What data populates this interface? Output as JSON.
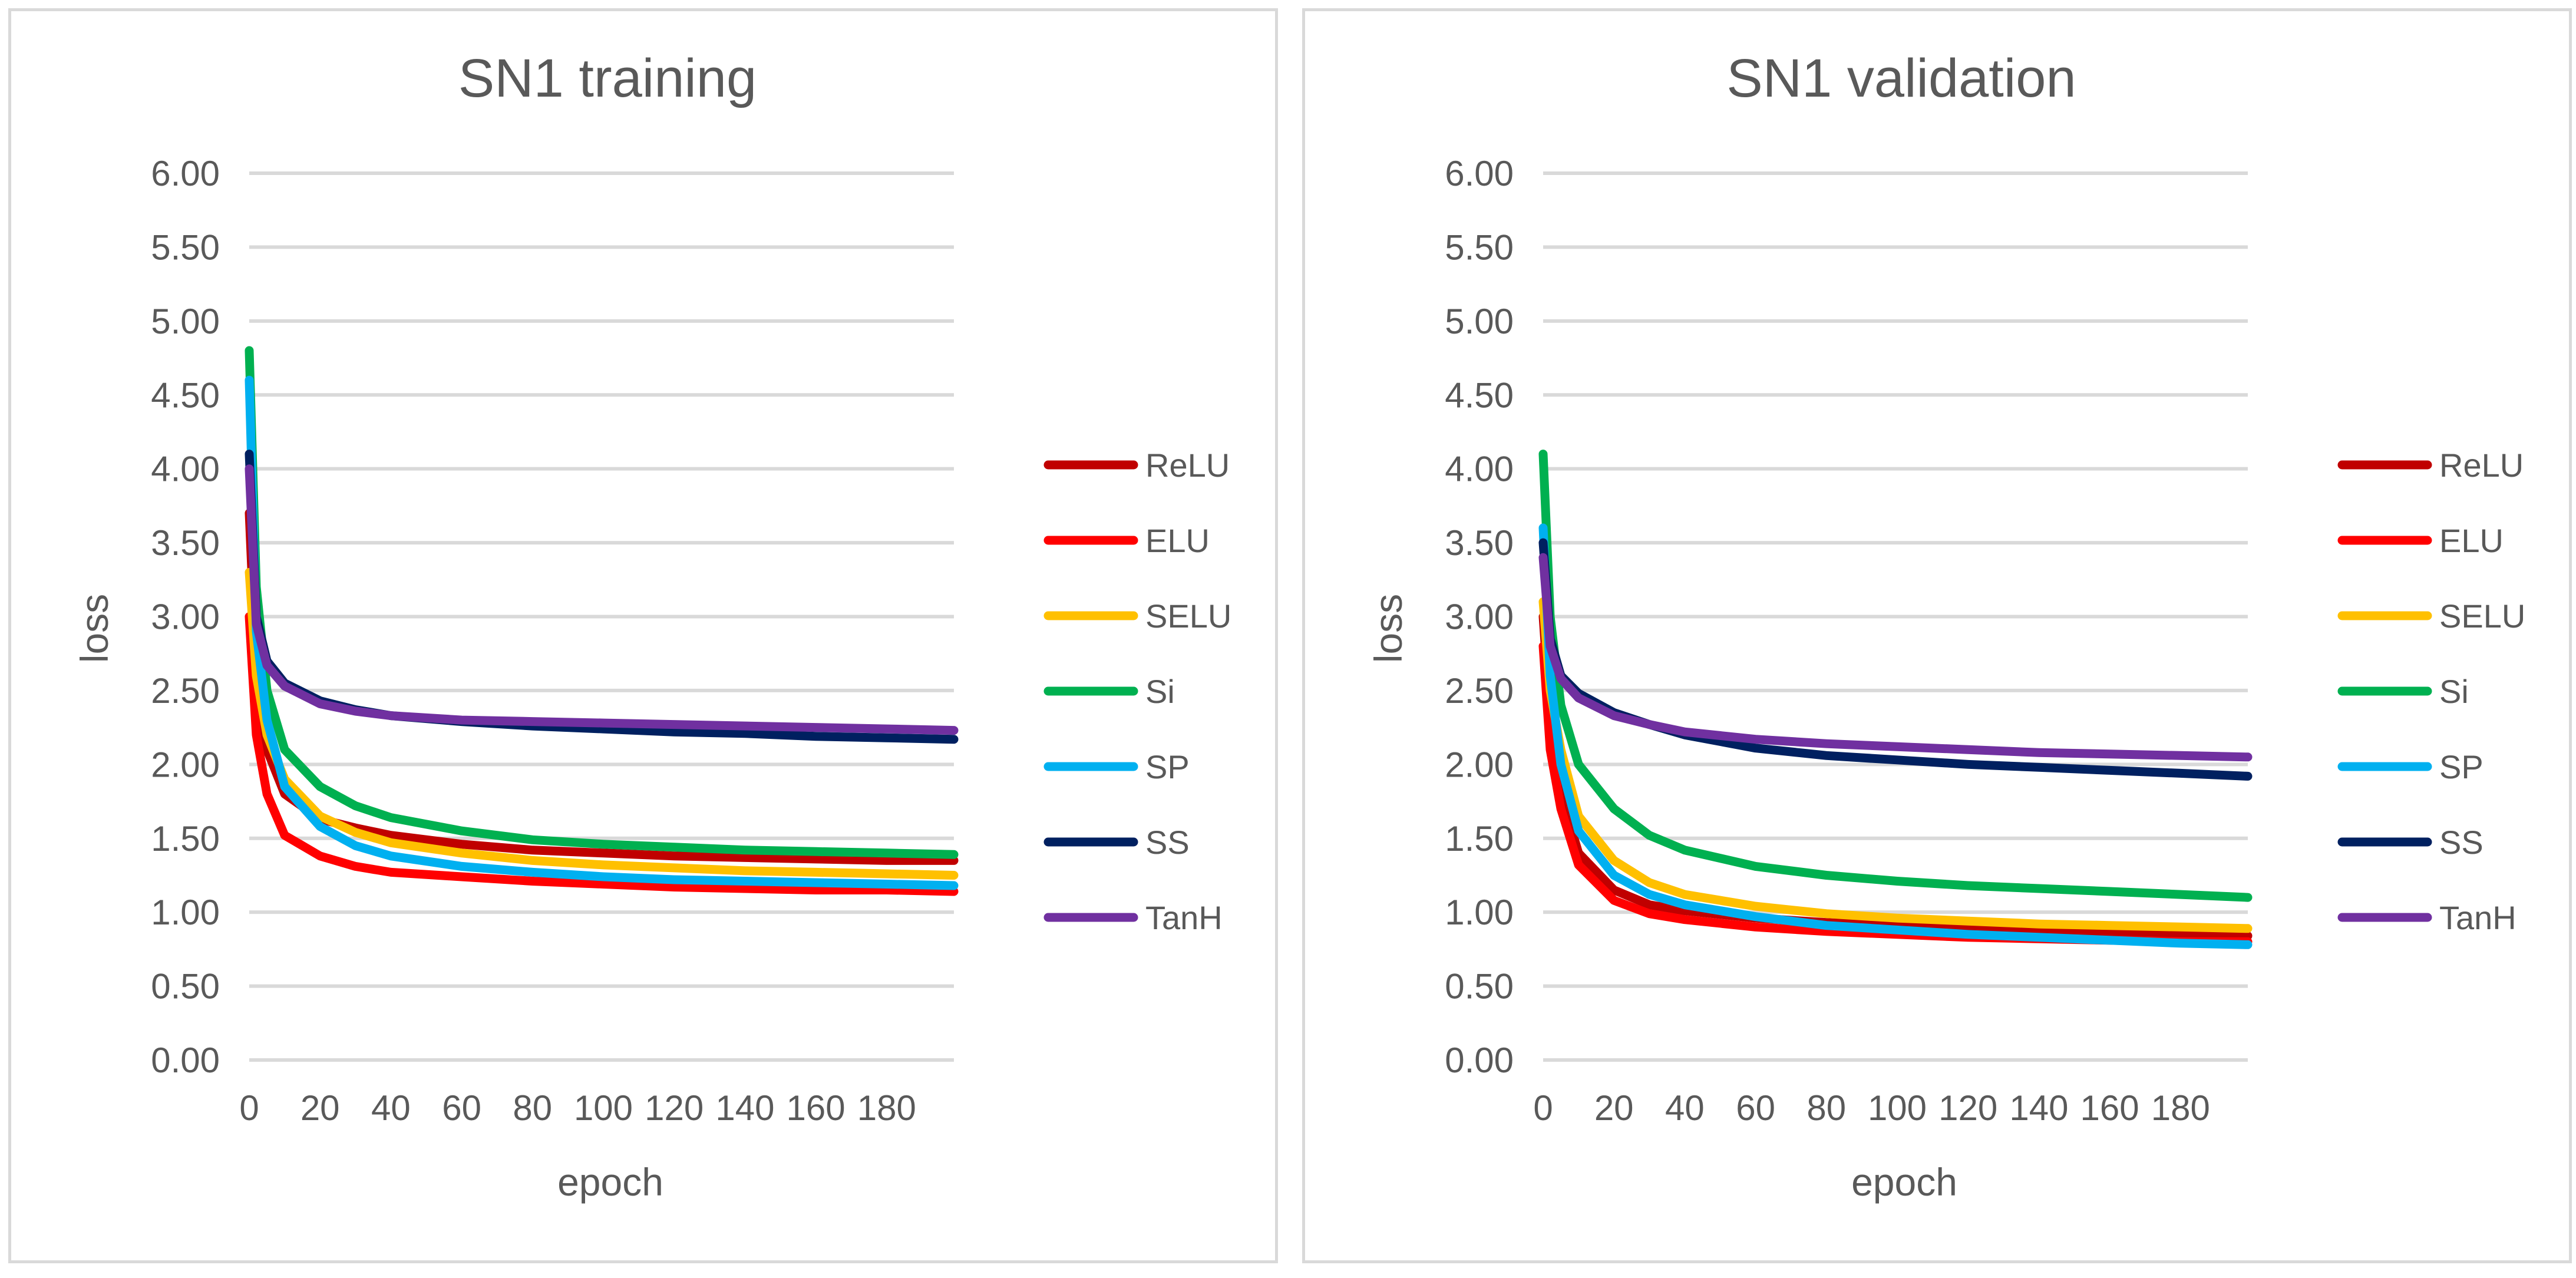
{
  "chart_data": [
    {
      "type": "line",
      "title": "SN1 training",
      "xlabel": "epoch",
      "ylabel": "loss",
      "xlim": [
        0,
        199
      ],
      "ylim": [
        0,
        6
      ],
      "yticks": [
        "0.00",
        "0.50",
        "1.00",
        "1.50",
        "2.00",
        "2.50",
        "3.00",
        "3.50",
        "4.00",
        "4.50",
        "5.00",
        "5.50",
        "6.00"
      ],
      "xticks": [
        "0",
        "20",
        "40",
        "60",
        "80",
        "100",
        "120",
        "140",
        "160",
        "180"
      ],
      "grid": true,
      "legend_position": "right",
      "x": [
        0,
        2,
        5,
        10,
        20,
        30,
        40,
        60,
        80,
        100,
        120,
        140,
        160,
        180,
        199
      ],
      "series": [
        {
          "name": "ReLU",
          "color": "#c00000",
          "values": [
            3.7,
            2.6,
            2.1,
            1.8,
            1.63,
            1.57,
            1.52,
            1.46,
            1.42,
            1.4,
            1.38,
            1.37,
            1.36,
            1.35,
            1.35
          ]
        },
        {
          "name": "ELU",
          "color": "#ff0000",
          "values": [
            3.0,
            2.2,
            1.8,
            1.52,
            1.38,
            1.31,
            1.27,
            1.24,
            1.21,
            1.19,
            1.17,
            1.16,
            1.15,
            1.15,
            1.14
          ]
        },
        {
          "name": "SELU",
          "color": "#ffc000",
          "values": [
            3.3,
            2.6,
            2.2,
            1.9,
            1.65,
            1.54,
            1.47,
            1.4,
            1.35,
            1.32,
            1.3,
            1.28,
            1.27,
            1.26,
            1.25
          ]
        },
        {
          "name": "Si",
          "color": "#00b050",
          "values": [
            4.8,
            3.2,
            2.5,
            2.1,
            1.85,
            1.72,
            1.64,
            1.55,
            1.49,
            1.46,
            1.44,
            1.42,
            1.41,
            1.4,
            1.39
          ]
        },
        {
          "name": "SP",
          "color": "#00b0f0",
          "values": [
            4.6,
            2.9,
            2.3,
            1.85,
            1.58,
            1.45,
            1.38,
            1.31,
            1.27,
            1.24,
            1.22,
            1.21,
            1.2,
            1.19,
            1.18
          ]
        },
        {
          "name": "SS",
          "color": "#002060",
          "values": [
            4.1,
            3.0,
            2.7,
            2.55,
            2.43,
            2.37,
            2.33,
            2.29,
            2.26,
            2.24,
            2.22,
            2.21,
            2.19,
            2.18,
            2.17
          ]
        },
        {
          "name": "TanH",
          "color": "#7030a0",
          "values": [
            4.0,
            2.95,
            2.67,
            2.53,
            2.41,
            2.36,
            2.33,
            2.3,
            2.29,
            2.28,
            2.27,
            2.26,
            2.25,
            2.24,
            2.23
          ]
        }
      ]
    },
    {
      "type": "line",
      "title": "SN1 validation",
      "xlabel": "epoch",
      "ylabel": "loss",
      "xlim": [
        0,
        199
      ],
      "ylim": [
        0,
        6
      ],
      "yticks": [
        "0.00",
        "0.50",
        "1.00",
        "1.50",
        "2.00",
        "2.50",
        "3.00",
        "3.50",
        "4.00",
        "4.50",
        "5.00",
        "5.50",
        "6.00"
      ],
      "xticks": [
        "0",
        "20",
        "40",
        "60",
        "80",
        "100",
        "120",
        "140",
        "160",
        "180"
      ],
      "grid": true,
      "legend_position": "right",
      "x": [
        0,
        2,
        5,
        10,
        20,
        30,
        40,
        60,
        80,
        100,
        120,
        140,
        160,
        180,
        199
      ],
      "series": [
        {
          "name": "ReLU",
          "color": "#c00000",
          "values": [
            3.0,
            2.3,
            1.8,
            1.4,
            1.15,
            1.05,
            1.01,
            0.96,
            0.93,
            0.91,
            0.89,
            0.87,
            0.86,
            0.85,
            0.84
          ]
        },
        {
          "name": "ELU",
          "color": "#ff0000",
          "values": [
            2.8,
            2.1,
            1.7,
            1.32,
            1.08,
            0.99,
            0.95,
            0.9,
            0.87,
            0.85,
            0.83,
            0.82,
            0.81,
            0.8,
            0.8
          ]
        },
        {
          "name": "SELU",
          "color": "#ffc000",
          "values": [
            3.1,
            2.5,
            2.1,
            1.65,
            1.35,
            1.2,
            1.12,
            1.04,
            0.99,
            0.96,
            0.94,
            0.92,
            0.91,
            0.9,
            0.89
          ]
        },
        {
          "name": "Si",
          "color": "#00b050",
          "values": [
            4.1,
            3.0,
            2.4,
            2.0,
            1.7,
            1.52,
            1.42,
            1.31,
            1.25,
            1.21,
            1.18,
            1.16,
            1.14,
            1.12,
            1.1
          ]
        },
        {
          "name": "SP",
          "color": "#00b0f0",
          "values": [
            3.6,
            2.6,
            2.0,
            1.55,
            1.25,
            1.12,
            1.05,
            0.97,
            0.91,
            0.88,
            0.85,
            0.83,
            0.81,
            0.79,
            0.78
          ]
        },
        {
          "name": "SS",
          "color": "#002060",
          "values": [
            3.5,
            2.85,
            2.6,
            2.48,
            2.35,
            2.27,
            2.2,
            2.11,
            2.06,
            2.03,
            2.0,
            1.98,
            1.96,
            1.94,
            1.92
          ]
        },
        {
          "name": "TanH",
          "color": "#7030a0",
          "values": [
            3.4,
            2.8,
            2.58,
            2.45,
            2.33,
            2.27,
            2.22,
            2.17,
            2.14,
            2.12,
            2.1,
            2.08,
            2.07,
            2.06,
            2.05
          ]
        }
      ]
    }
  ]
}
